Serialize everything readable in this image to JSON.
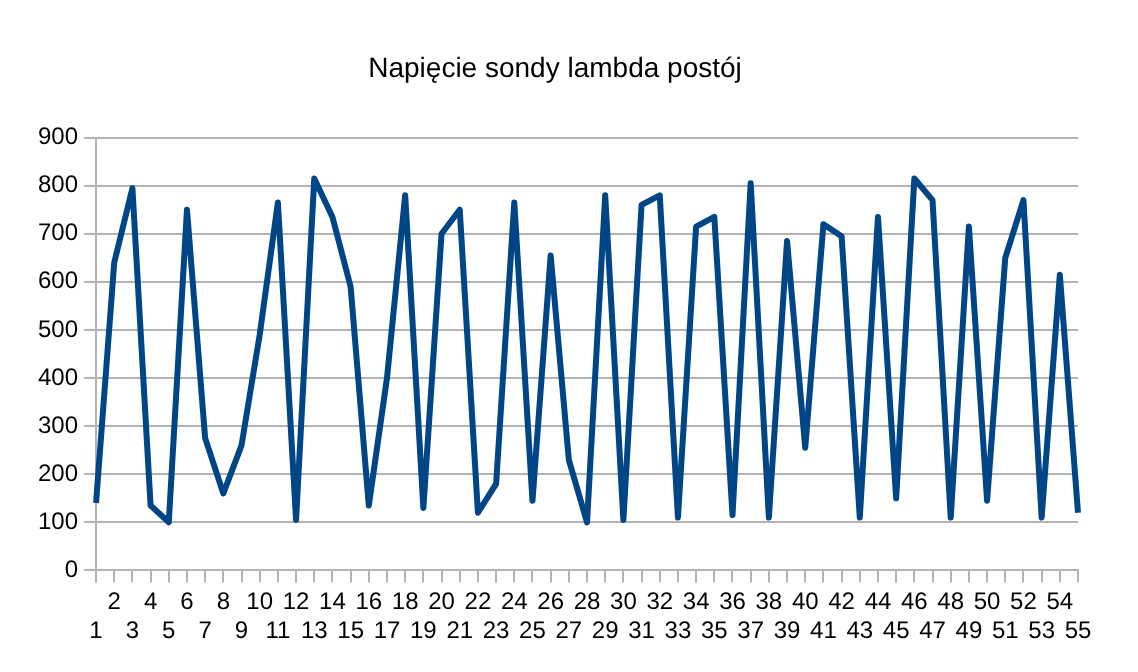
{
  "chart_data": {
    "type": "line",
    "title": "Napięcie sondy lambda postój",
    "categories": [
      "1",
      "2",
      "3",
      "4",
      "5",
      "6",
      "7",
      "8",
      "9",
      "10",
      "11",
      "12",
      "13",
      "14",
      "15",
      "16",
      "17",
      "18",
      "19",
      "20",
      "21",
      "22",
      "23",
      "24",
      "25",
      "26",
      "27",
      "28",
      "29",
      "30",
      "31",
      "32",
      "33",
      "34",
      "35",
      "36",
      "37",
      "38",
      "39",
      "40",
      "41",
      "42",
      "43",
      "44",
      "45",
      "46",
      "47",
      "48",
      "49",
      "50",
      "51",
      "52",
      "53",
      "54",
      "55"
    ],
    "series": [
      {
        "color": "#004586",
        "values": [
          140,
          640,
          795,
          135,
          100,
          750,
          275,
          160,
          260,
          490,
          765,
          105,
          815,
          735,
          590,
          135,
          400,
          780,
          130,
          700,
          750,
          120,
          180,
          765,
          145,
          655,
          230,
          100,
          780,
          105,
          760,
          780,
          110,
          715,
          735,
          115,
          805,
          110,
          685,
          255,
          720,
          695,
          110,
          735,
          150,
          815,
          770,
          110,
          715,
          145,
          650,
          770,
          110,
          615,
          120
        ]
      }
    ],
    "ylim": [
      0,
      900
    ],
    "yticks": [
      0,
      100,
      200,
      300,
      400,
      500,
      600,
      700,
      800,
      900
    ],
    "grid": "y",
    "legend": false,
    "marker": "none",
    "line_style": "solid"
  }
}
